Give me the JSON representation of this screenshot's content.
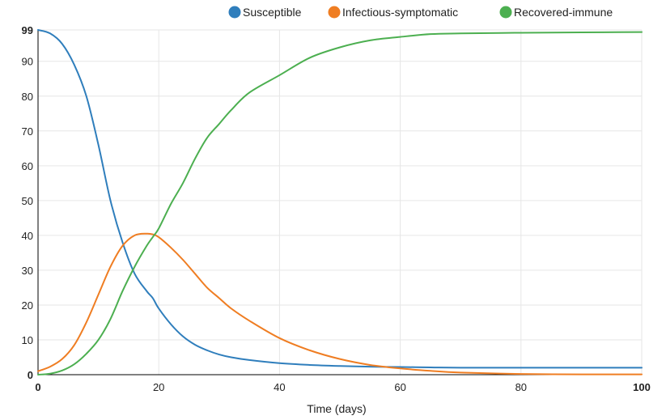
{
  "chart_data": {
    "type": "line",
    "title": "",
    "xlabel": "Time (days)",
    "ylabel": "",
    "xlim": [
      0,
      100
    ],
    "ylim": [
      0,
      99
    ],
    "xticks": [
      0,
      20,
      40,
      60,
      80,
      100
    ],
    "xtick_labels": [
      "0",
      "20",
      "40",
      "60",
      "80",
      "100"
    ],
    "yticks": [
      0,
      10,
      20,
      30,
      40,
      50,
      60,
      70,
      80,
      90,
      99
    ],
    "ytick_labels": [
      "0",
      "10",
      "20",
      "30",
      "40",
      "50",
      "60",
      "70",
      "80",
      "90",
      "99"
    ],
    "grid": true,
    "legend_position": "top-right",
    "x": [
      0,
      2,
      4,
      6,
      8,
      10,
      12,
      14,
      16,
      18,
      19,
      20,
      22,
      24,
      26,
      28,
      30,
      32,
      35,
      40,
      45,
      50,
      55,
      60,
      65,
      70,
      80,
      90,
      100
    ],
    "series": [
      {
        "name": "Susceptible",
        "color": "#2f7ebc",
        "values": [
          99,
          98,
          95,
          89,
          80,
          66,
          50,
          38,
          29,
          24,
          22,
          19,
          14.5,
          11,
          8.6,
          7,
          5.8,
          5,
          4.2,
          3.3,
          2.8,
          2.5,
          2.3,
          2.2,
          2.1,
          2,
          2,
          2,
          2
        ]
      },
      {
        "name": "Infectious-symptomatic",
        "color": "#ef7d22",
        "values": [
          1,
          2.3,
          4.5,
          8.5,
          15,
          23,
          31,
          37,
          40,
          40.5,
          40.3,
          39.5,
          36.5,
          33,
          29,
          25,
          22,
          19,
          15.5,
          10.5,
          7,
          4.5,
          2.8,
          1.8,
          1.1,
          0.6,
          0.2,
          0.1,
          0.1
        ]
      },
      {
        "name": "Recovered-immune",
        "color": "#4caf50",
        "values": [
          0,
          0.3,
          1.2,
          3,
          6,
          10,
          16,
          24,
          31,
          37,
          39.5,
          42,
          49,
          55,
          62,
          68,
          72,
          76,
          81,
          86,
          91,
          94,
          96,
          97,
          97.8,
          98,
          98.2,
          98.3,
          98.4
        ]
      }
    ]
  }
}
